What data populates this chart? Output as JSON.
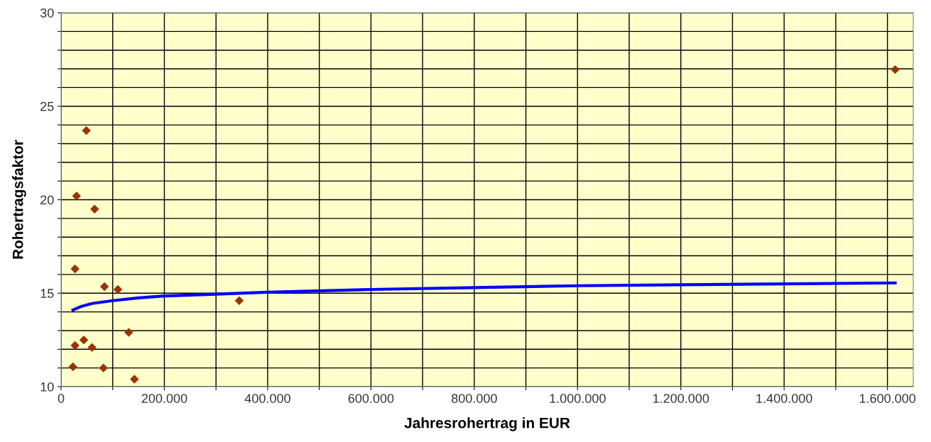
{
  "chart_data": {
    "type": "scatter",
    "xlabel": "Jahresrohertrag in EUR",
    "ylabel": "Rohertragsfaktor",
    "xlim": [
      0,
      1650000
    ],
    "ylim": [
      10,
      30
    ],
    "xticks": [
      {
        "value": 0,
        "label": "0"
      },
      {
        "value": 100000,
        "label": null
      },
      {
        "value": 200000,
        "label": "200.000"
      },
      {
        "value": 300000,
        "label": null
      },
      {
        "value": 400000,
        "label": "400.000"
      },
      {
        "value": 500000,
        "label": null
      },
      {
        "value": 600000,
        "label": "600.000"
      },
      {
        "value": 700000,
        "label": null
      },
      {
        "value": 800000,
        "label": "800.000"
      },
      {
        "value": 900000,
        "label": null
      },
      {
        "value": 1000000,
        "label": "1.000.000"
      },
      {
        "value": 1100000,
        "label": null
      },
      {
        "value": 1200000,
        "label": "1.200.000"
      },
      {
        "value": 1300000,
        "label": null
      },
      {
        "value": 1400000,
        "label": "1.400.000"
      },
      {
        "value": 1500000,
        "label": null
      },
      {
        "value": 1600000,
        "label": "1.600.000"
      }
    ],
    "yticks": [
      10,
      {
        "value": 11,
        "label": null
      },
      {
        "value": 12,
        "label": null
      },
      {
        "value": 13,
        "label": null
      },
      {
        "value": 14,
        "label": null
      },
      15,
      {
        "value": 16,
        "label": null
      },
      {
        "value": 17,
        "label": null
      },
      {
        "value": 18,
        "label": null
      },
      {
        "value": 19,
        "label": null
      },
      20,
      {
        "value": 21,
        "label": null
      },
      {
        "value": 22,
        "label": null
      },
      {
        "value": 23,
        "label": null
      },
      {
        "value": 24,
        "label": null
      },
      25,
      {
        "value": 26,
        "label": null
      },
      {
        "value": 27,
        "label": null
      },
      {
        "value": 28,
        "label": null
      },
      {
        "value": 29,
        "label": null
      },
      30
    ],
    "grid": true,
    "legend": false,
    "series": [
      {
        "color": "#993300",
        "marker": "diamond",
        "x": [
          23000,
          27000,
          27000,
          30000,
          44000,
          49000,
          60000,
          65000,
          82000,
          84000,
          110000,
          131000,
          142000,
          345000,
          1615000
        ],
        "values": [
          11.06,
          12.2,
          16.3,
          20.2,
          12.5,
          23.7,
          12.1,
          19.5,
          11.0,
          15.35,
          15.2,
          12.9,
          10.4,
          14.6,
          26.96
        ]
      },
      {
        "type": "line",
        "color": "#0000ff",
        "marker": "none",
        "line_style": "solid",
        "x": [
          23000,
          40000,
          60000,
          100000,
          150000,
          200000,
          300000,
          400000,
          600000,
          800000,
          1000000,
          1200000,
          1400000,
          1615000
        ],
        "values": [
          14.1,
          14.3,
          14.45,
          14.6,
          14.75,
          14.85,
          14.95,
          15.05,
          15.2,
          15.3,
          15.4,
          15.45,
          15.5,
          15.55
        ]
      }
    ]
  }
}
